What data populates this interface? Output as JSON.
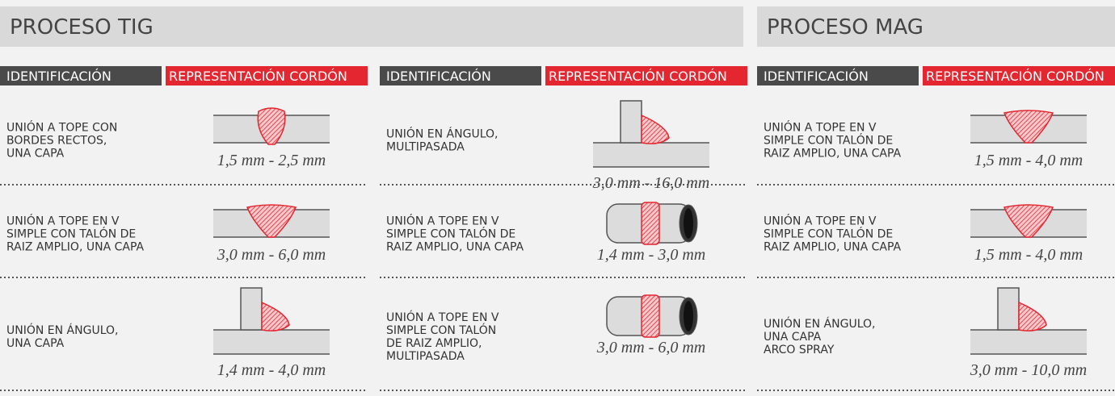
{
  "sections": [
    {
      "title": "PROCESO TIG",
      "columns": [
        {
          "identification": "IDENTIFICACIÓN",
          "representation": "REPRESENTACIÓN CORDÓN",
          "rows": [
            {
              "label": [
                "UNIÓN A TOPE CON",
                "BORDES RECTOS,",
                "UNA CAPA"
              ],
              "dimension": "1,5 mm - 2,5 mm"
            },
            {
              "label": [
                "UNIÓN A TOPE EN V",
                "SIMPLE CON TALÓN DE",
                "RAIZ AMPLIO, UNA CAPA"
              ],
              "dimension": "3,0 mm - 6,0 mm"
            },
            {
              "label": [
                "UNIÓN EN ÁNGULO,",
                "UNA CAPA"
              ],
              "dimension": "1,4 mm - 4,0 mm"
            }
          ]
        },
        {
          "identification": "IDENTIFICACIÓN",
          "representation": "REPRESENTACIÓN CORDÓN",
          "rows": [
            {
              "label": [
                "UNIÓN EN ÁNGULO,",
                "MULTIPASADA"
              ],
              "dimension": "3,0 mm - 16,0 mm"
            },
            {
              "label": [
                "UNIÓN A TOPE EN V",
                "SIMPLE CON TALÓN DE",
                "RAIZ AMPLIO, UNA CAPA"
              ],
              "dimension": "1,4 mm - 3,0 mm"
            },
            {
              "label": [
                "UNIÓN A TOPE EN V",
                "SIMPLE CON TALÓN",
                "DE RAIZ AMPLIO,",
                "MULTIPASADA"
              ],
              "dimension": "3,0 mm - 6,0 mm"
            }
          ]
        }
      ]
    },
    {
      "title": "PROCESO MAG",
      "columns": [
        {
          "identification": "IDENTIFICACIÓN",
          "representation": "REPRESENTACIÓN CORDÓN",
          "rows": [
            {
              "label": [
                "UNIÓN A TOPE EN V",
                "SIMPLE CON TALÓN DE",
                "RAIZ AMPLIO, UNA CAPA"
              ],
              "dimension": "1,5 mm - 4,0 mm"
            },
            {
              "label": [
                "UNIÓN A TOPE EN V",
                "SIMPLE CON TALÓN DE",
                "RAIZ AMPLIO, UNA CAPA"
              ],
              "dimension": "1,5 mm - 4,0 mm"
            },
            {
              "label": [
                "UNIÓN EN ÁNGULO,",
                "UNA CAPA",
                "ARCO SPRAY"
              ],
              "dimension": "3,0 mm - 10,0 mm"
            }
          ]
        }
      ]
    }
  ]
}
